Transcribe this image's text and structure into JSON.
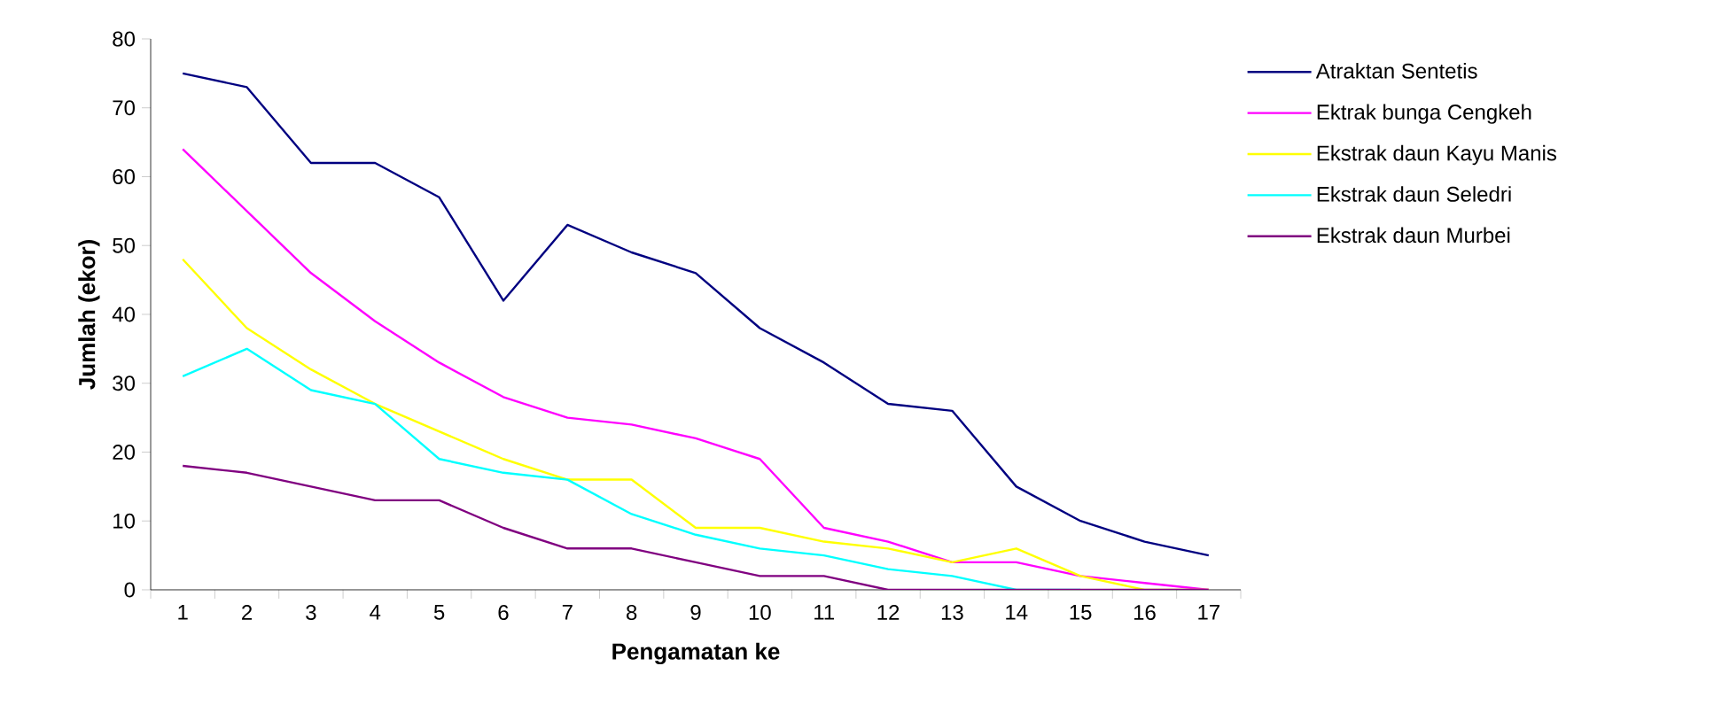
{
  "chart_data": {
    "type": "line",
    "xlabel": "Pengamatan ke",
    "ylabel": "Jumlah (ekor)",
    "categories": [
      "1",
      "2",
      "3",
      "4",
      "5",
      "6",
      "7",
      "8",
      "9",
      "10",
      "11",
      "12",
      "13",
      "14",
      "15",
      "16",
      "17"
    ],
    "ylim": [
      0,
      80
    ],
    "yticks": [
      0,
      10,
      20,
      30,
      40,
      50,
      60,
      70,
      80
    ],
    "grid": false,
    "legend": "top right",
    "marker": "none",
    "line_style": "solid",
    "series": [
      {
        "name": "Atraktan Sentetis",
        "color": "#000080",
        "values": [
          75,
          73,
          62,
          62,
          57,
          42,
          53,
          49,
          46,
          38,
          33,
          27,
          26,
          15,
          10,
          7,
          5
        ]
      },
      {
        "name": "Ektrak bunga Cengkeh",
        "color": "#ff00ff",
        "values": [
          64,
          55,
          46,
          39,
          33,
          28,
          25,
          24,
          22,
          19,
          9,
          7,
          4,
          4,
          2,
          1,
          0
        ]
      },
      {
        "name": "Ekstrak daun Kayu Manis",
        "color": "#ffff00",
        "values": [
          48,
          38,
          32,
          27,
          23,
          19,
          16,
          16,
          9,
          9,
          7,
          6,
          4,
          6,
          2,
          0,
          0
        ]
      },
      {
        "name": "Ekstrak daun Seledri",
        "color": "#00ffff",
        "values": [
          31,
          35,
          29,
          27,
          19,
          17,
          16,
          11,
          8,
          6,
          5,
          3,
          2,
          0,
          0,
          null,
          null
        ]
      },
      {
        "name": "Ekstrak daun Murbei",
        "color": "#800080",
        "values": [
          18,
          17,
          15,
          13,
          13,
          9,
          6,
          6,
          4,
          2,
          2,
          0,
          0,
          0,
          0,
          0,
          0
        ]
      }
    ]
  }
}
